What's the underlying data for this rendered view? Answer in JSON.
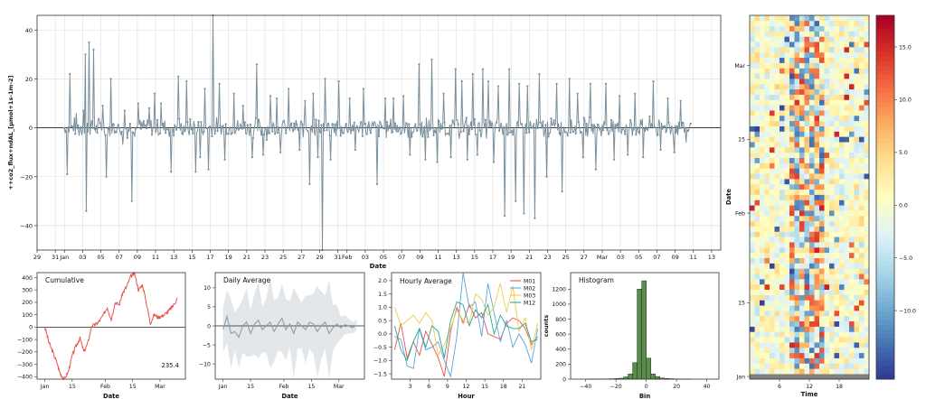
{
  "colors": {
    "main_line": "#7a8f9c",
    "cumulative": "#e8524a",
    "daily": "#8d9ea8",
    "daily_band": "#e3e7ea",
    "histogram": "#5a8c4e",
    "hourly_title_color": "#222222",
    "hist_title_color": "#3e8e3e"
  },
  "chart_data": [
    {
      "id": "main",
      "type": "line",
      "ylabel": "++co2_flux+ndAL_[µmol+1s-1m-2]",
      "xlabel": "Date",
      "ylim": [
        -50,
        46
      ],
      "yticks": [
        "40",
        "20",
        "0",
        "−20",
        "−40"
      ],
      "yticks_values": [
        40,
        20,
        0,
        -20,
        -40
      ],
      "xticks": [
        "29",
        "31",
        "Jan",
        "03",
        "05",
        "07",
        "09",
        "11",
        "13",
        "15",
        "17",
        "19",
        "21",
        "23",
        "25",
        "27",
        "29",
        "31",
        "Feb",
        "03",
        "05",
        "07",
        "09",
        "11",
        "13",
        "15",
        "17",
        "19",
        "21",
        "23",
        "25",
        "27",
        "Mar",
        "03",
        "05",
        "07",
        "09",
        "11",
        "13"
      ],
      "x_range_days": [
        -3,
        72
      ],
      "data_range_days": [
        0,
        68.8
      ],
      "grid": true,
      "series": [
        {
          "spikes": [
            {
              "day": 0.3,
              "value": -19
            },
            {
              "day": 0.6,
              "value": 22
            },
            {
              "day": 1.3,
              "value": 6
            },
            {
              "day": 2.1,
              "value": 7
            },
            {
              "day": 2.3,
              "value": 30
            },
            {
              "day": 2.4,
              "value": -34
            },
            {
              "day": 2.7,
              "value": 35
            },
            {
              "day": 3.2,
              "value": 32
            },
            {
              "day": 4.2,
              "value": 9
            },
            {
              "day": 4.6,
              "value": -20
            },
            {
              "day": 5.1,
              "value": 20
            },
            {
              "day": 6.4,
              "value": -7
            },
            {
              "day": 6.6,
              "value": 7
            },
            {
              "day": 7.4,
              "value": -30
            },
            {
              "day": 8.1,
              "value": 10
            },
            {
              "day": 9.3,
              "value": 8
            },
            {
              "day": 9.9,
              "value": 14
            },
            {
              "day": 10.6,
              "value": 10
            },
            {
              "day": 11.7,
              "value": -18
            },
            {
              "day": 12.5,
              "value": 21
            },
            {
              "day": 13.4,
              "value": 19
            },
            {
              "day": 14.4,
              "value": -18
            },
            {
              "day": 14.9,
              "value": -12
            },
            {
              "day": 15.4,
              "value": 16
            },
            {
              "day": 15.8,
              "value": -17
            },
            {
              "day": 16.3,
              "value": 46
            },
            {
              "day": 17.0,
              "value": 18
            },
            {
              "day": 17.6,
              "value": -13
            },
            {
              "day": 18.6,
              "value": 14
            },
            {
              "day": 19.6,
              "value": 9
            },
            {
              "day": 20.6,
              "value": -12
            },
            {
              "day": 21.1,
              "value": 26
            },
            {
              "day": 21.8,
              "value": -11
            },
            {
              "day": 22.6,
              "value": 13
            },
            {
              "day": 23.3,
              "value": 12
            },
            {
              "day": 23.7,
              "value": -10
            },
            {
              "day": 24.6,
              "value": 16
            },
            {
              "day": 25.8,
              "value": -9
            },
            {
              "day": 26.4,
              "value": 11
            },
            {
              "day": 26.9,
              "value": -23
            },
            {
              "day": 27.3,
              "value": 14
            },
            {
              "day": 27.8,
              "value": -12
            },
            {
              "day": 28.3,
              "value": -50
            },
            {
              "day": 28.6,
              "value": 20
            },
            {
              "day": 29.2,
              "value": -13
            },
            {
              "day": 30.1,
              "value": 19
            },
            {
              "day": 31.3,
              "value": 12
            },
            {
              "day": 31.9,
              "value": -9
            },
            {
              "day": 32.8,
              "value": 16
            },
            {
              "day": 34.3,
              "value": -23
            },
            {
              "day": 35.2,
              "value": 12
            },
            {
              "day": 36.1,
              "value": 12
            },
            {
              "day": 37.2,
              "value": 13
            },
            {
              "day": 37.9,
              "value": -11
            },
            {
              "day": 38.9,
              "value": 26
            },
            {
              "day": 39.6,
              "value": -13
            },
            {
              "day": 40.3,
              "value": 28
            },
            {
              "day": 40.9,
              "value": -14
            },
            {
              "day": 41.6,
              "value": 14
            },
            {
              "day": 42.4,
              "value": -12
            },
            {
              "day": 42.9,
              "value": 24
            },
            {
              "day": 43.6,
              "value": 19
            },
            {
              "day": 44.2,
              "value": -13
            },
            {
              "day": 44.8,
              "value": 22
            },
            {
              "day": 45.3,
              "value": -11
            },
            {
              "day": 45.9,
              "value": 24
            },
            {
              "day": 46.5,
              "value": 19
            },
            {
              "day": 47.1,
              "value": -14
            },
            {
              "day": 47.6,
              "value": 17
            },
            {
              "day": 48.3,
              "value": -36
            },
            {
              "day": 48.8,
              "value": 24
            },
            {
              "day": 49.5,
              "value": -30
            },
            {
              "day": 49.9,
              "value": 18
            },
            {
              "day": 50.4,
              "value": -35
            },
            {
              "day": 50.8,
              "value": 17
            },
            {
              "day": 51.6,
              "value": -37
            },
            {
              "day": 52.1,
              "value": 22
            },
            {
              "day": 52.9,
              "value": -20
            },
            {
              "day": 54.0,
              "value": 18
            },
            {
              "day": 54.6,
              "value": -26
            },
            {
              "day": 55.4,
              "value": 20
            },
            {
              "day": 56.3,
              "value": 14
            },
            {
              "day": 56.9,
              "value": -12
            },
            {
              "day": 57.7,
              "value": 18
            },
            {
              "day": 58.3,
              "value": -17
            },
            {
              "day": 59.4,
              "value": 18
            },
            {
              "day": 60.3,
              "value": -13
            },
            {
              "day": 60.9,
              "value": 13
            },
            {
              "day": 61.8,
              "value": -11
            },
            {
              "day": 62.6,
              "value": 14
            },
            {
              "day": 63.5,
              "value": -12
            },
            {
              "day": 64.6,
              "value": 19
            },
            {
              "day": 65.4,
              "value": -9
            },
            {
              "day": 66.2,
              "value": 12
            },
            {
              "day": 66.9,
              "value": -10
            },
            {
              "day": 67.6,
              "value": 11
            },
            {
              "day": 68.2,
              "value": -6
            }
          ],
          "noise_amplitude": 5
        }
      ]
    },
    {
      "id": "cumulative",
      "type": "line",
      "title": "Cumulative",
      "annotation": "235.4",
      "ylim": [
        -420,
        440
      ],
      "yticks": [
        "400",
        "300",
        "200",
        "100",
        "0",
        "−100",
        "−200",
        "−300",
        "−400"
      ],
      "yticks_values": [
        400,
        300,
        200,
        100,
        0,
        -100,
        -200,
        -300,
        -400
      ],
      "xticks": [
        "Jan",
        "15",
        "Feb",
        "15",
        "Mar"
      ],
      "xticks_days": [
        0,
        14,
        31,
        45,
        59
      ],
      "xlabel": "Date",
      "series": [
        {
          "days": [
            0,
            2,
            4,
            6,
            8,
            10,
            12,
            14,
            16,
            18,
            20,
            22,
            24,
            26,
            28,
            30,
            32,
            34,
            36,
            38,
            40,
            42,
            44,
            46,
            48,
            50,
            52,
            54,
            56,
            58,
            60,
            62,
            64,
            66,
            68
          ],
          "values": [
            0,
            -120,
            -200,
            -280,
            -380,
            -420,
            -360,
            -230,
            -150,
            -90,
            -200,
            -130,
            10,
            20,
            50,
            100,
            160,
            60,
            200,
            180,
            280,
            330,
            410,
            430,
            300,
            340,
            200,
            30,
            100,
            80,
            90,
            110,
            140,
            180,
            235.4
          ]
        }
      ]
    },
    {
      "id": "daily",
      "type": "line",
      "title": "Daily Average",
      "ylim": [
        -14,
        14
      ],
      "yticks": [
        "10",
        "5",
        "0",
        "−5",
        "−10"
      ],
      "yticks_values": [
        10,
        5,
        0,
        -5,
        -10
      ],
      "xticks": [
        "Jan",
        "15",
        "Feb",
        "15",
        "Mar"
      ],
      "xticks_days": [
        0,
        14,
        31,
        45,
        59
      ],
      "xlabel": "Date",
      "series": [
        {
          "days": [
            0,
            2,
            4,
            6,
            8,
            10,
            12,
            14,
            16,
            18,
            20,
            22,
            24,
            26,
            28,
            30,
            32,
            34,
            36,
            38,
            40,
            42,
            44,
            46,
            48,
            50,
            52,
            54,
            56,
            58,
            60,
            62,
            64,
            66,
            68
          ],
          "values": [
            -1,
            2.5,
            -2,
            -1.5,
            -3,
            0,
            1,
            -2,
            0.5,
            1.5,
            -1,
            0,
            1,
            -1.5,
            0.5,
            2,
            -1,
            0.5,
            -2,
            1,
            0,
            -1,
            1,
            0.5,
            -1.5,
            0,
            1,
            -2,
            -0.5,
            0.5,
            -0.5,
            0.3,
            0,
            -0.5,
            0.2
          ],
          "spread": [
            6,
            7,
            9,
            5,
            8,
            7,
            9,
            6,
            8,
            10,
            6,
            7,
            12,
            8,
            7,
            9,
            8,
            6,
            12,
            7,
            6,
            9,
            7,
            8,
            12,
            9,
            7,
            14,
            6,
            5,
            3,
            2.5,
            2,
            1.5,
            1.5
          ]
        }
      ]
    },
    {
      "id": "hourly",
      "type": "line",
      "title": "Hourly Average",
      "ylim": [
        -1.7,
        2.3
      ],
      "yticks": [
        "2.0",
        "1.5",
        "1.0",
        "0.5",
        "0.0",
        "−0.5",
        "−1.0",
        "−1.5"
      ],
      "yticks_values": [
        2.0,
        1.5,
        1.0,
        0.5,
        0.0,
        -0.5,
        -1.0,
        -1.5
      ],
      "xticks": [
        "3",
        "6",
        "9",
        "12",
        "15",
        "18",
        "21"
      ],
      "xticks_values": [
        3,
        6,
        9,
        12,
        15,
        18,
        21
      ],
      "xlim": [
        0,
        24
      ],
      "xlabel": "Hour",
      "series": [
        {
          "name": "M01",
          "color": "#e8524a",
          "values": [
            -0.6,
            0.4,
            -0.9,
            -0.3,
            -0.8,
            0.1,
            -0.4,
            -0.9,
            -1.6,
            0.1,
            1.0,
            0.4,
            1.1,
            0.6,
            0.8,
            0.0,
            -0.1,
            -0.2,
            0.4,
            0.6,
            0.5,
            0.2,
            -0.4,
            -0.1
          ]
        },
        {
          "name": "M02",
          "color": "#5aa6e0",
          "values": [
            -0.1,
            -0.2,
            -1.2,
            -1.3,
            0.2,
            -0.6,
            -0.5,
            -0.3,
            -1.0,
            -1.6,
            -0.1,
            2.3,
            1.0,
            1.2,
            -0.1,
            1.9,
            0.8,
            -0.3,
            0.5,
            -0.5,
            0.0,
            -0.4,
            -1.1,
            0.2
          ]
        },
        {
          "name": "M03",
          "color": "#f2c84b",
          "values": [
            1.0,
            0.3,
            0.5,
            0.7,
            0.4,
            0.8,
            0.5,
            -0.8,
            -0.4,
            0.2,
            0.9,
            0.5,
            0.4,
            1.5,
            1.3,
            0.7,
            1.0,
            1.9,
            0.8,
            1.8,
            0.1,
            0.6,
            -0.6,
            0.4
          ]
        },
        {
          "name": "M12",
          "color": "#2ca58d",
          "values": [
            0.3,
            -0.6,
            -1.0,
            -0.3,
            0.2,
            -0.5,
            0.3,
            0.1,
            -0.9,
            0.5,
            1.2,
            1.1,
            0.3,
            0.9,
            0.6,
            1.1,
            0.0,
            0.7,
            0.3,
            0.2,
            0.2,
            0.4,
            -0.3,
            -0.2
          ]
        }
      ]
    },
    {
      "id": "histogram",
      "type": "bar",
      "title": "Histogram",
      "xlabel": "Bin",
      "ylabel": "counts",
      "ylim": [
        0,
        1420
      ],
      "xlim": [
        -50,
        48
      ],
      "yticks": [
        "1200",
        "1000",
        "800",
        "600",
        "400",
        "200",
        "0"
      ],
      "yticks_values": [
        1200,
        1000,
        800,
        600,
        400,
        200,
        0
      ],
      "xticks": [
        "−40",
        "−20",
        "0",
        "20",
        "40"
      ],
      "xticks_values": [
        -40,
        -20,
        0,
        20,
        40
      ],
      "bin_width": 3,
      "bins": [
        -39,
        -36,
        -33,
        -30,
        -27,
        -24,
        -21,
        -18,
        -15,
        -12,
        -9,
        -6,
        -3,
        0,
        3,
        6,
        9,
        12,
        15,
        18,
        21,
        24,
        27
      ],
      "values": [
        2,
        2,
        3,
        3,
        4,
        5,
        8,
        12,
        30,
        70,
        220,
        1200,
        1310,
        280,
        70,
        35,
        15,
        10,
        6,
        4,
        3,
        2,
        2
      ]
    },
    {
      "id": "heatmap",
      "type": "heatmap",
      "xlabel": "Time",
      "ylabel": "Date",
      "xticks": [
        "6",
        "12",
        "18"
      ],
      "xticks_values": [
        6,
        12,
        18
      ],
      "columns": 24,
      "rows": 69,
      "yticks": [
        "Mar",
        "15",
        "Feb",
        "15",
        "Jan"
      ],
      "yticks_rows": [
        59,
        45,
        31,
        14,
        0
      ],
      "colorbar_ticks": [
        "15.0",
        "10.0",
        "5.0",
        "0.0",
        "−5.0",
        "−10.0"
      ],
      "colorbar_values": [
        15,
        10,
        5,
        0,
        -5,
        -10
      ],
      "vlim": [
        -16.5,
        18
      ],
      "colormap": "RdYlBu_r",
      "missing_rows": [
        0
      ],
      "missing_color": "#808080"
    }
  ]
}
